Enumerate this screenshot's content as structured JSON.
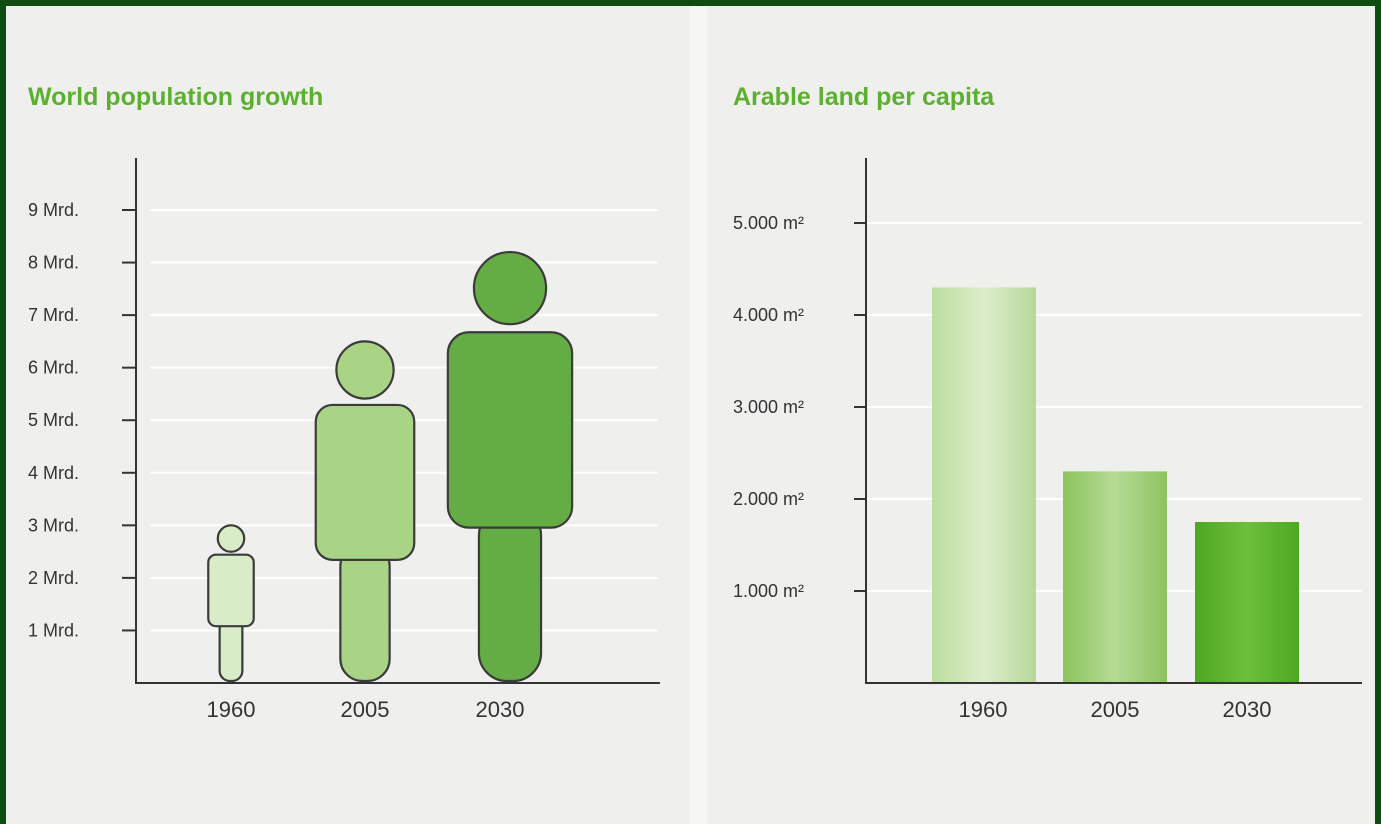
{
  "colors": {
    "frame": "#0d4d12",
    "panel": "#efefee",
    "title": "#5cb030",
    "axis": "#333333",
    "figure_1960": "#d9ecc8",
    "figure_2005": "#a9d486",
    "figure_2030": "#64ad45",
    "bar_1960": "#c8e3ad",
    "bar_2005": "#98ca6e",
    "bar_2030": "#5cb42a"
  },
  "chart_data": [
    {
      "type": "bar",
      "title": "World population growth",
      "xlabel": "",
      "ylabel": "",
      "categories": [
        "1960",
        "2005",
        "2030"
      ],
      "values": [
        3,
        6.5,
        8.2
      ],
      "unit": "Mrd.",
      "ylim": [
        0,
        9
      ],
      "ytick_values": [
        1,
        2,
        3,
        4,
        5,
        6,
        7,
        8,
        9
      ],
      "ytick_labels": [
        "1 Mrd.",
        "2 Mrd.",
        "3 Mrd.",
        "4 Mrd.",
        "5 Mrd.",
        "6 Mrd.",
        "7 Mrd.",
        "8 Mrd.",
        "9 Mrd."
      ],
      "mark": "human-figure-icon",
      "grid": true
    },
    {
      "type": "bar",
      "title": "Arable land per capita",
      "xlabel": "",
      "ylabel": "",
      "categories": [
        "1960",
        "2005",
        "2030"
      ],
      "values": [
        4300,
        2300,
        1750
      ],
      "unit": "m²",
      "ylim": [
        0,
        5000
      ],
      "ytick_values": [
        1000,
        2000,
        3000,
        4000,
        5000
      ],
      "ytick_labels": [
        "1.000 m²",
        "2.000 m²",
        "3.000 m²",
        "4.000 m²",
        "5.000 m²"
      ],
      "grid": true
    }
  ]
}
